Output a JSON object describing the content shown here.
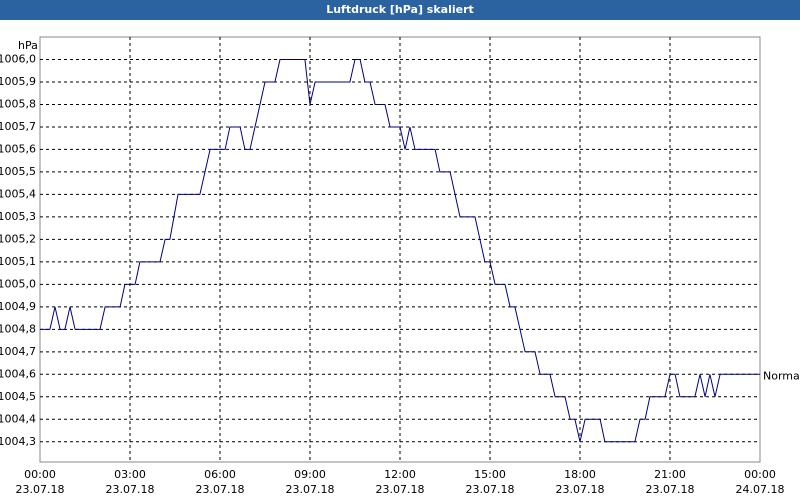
{
  "chart_data": {
    "type": "line",
    "title": "Luftdruck [hPa] skaliert",
    "y_label": "hPa",
    "x": [
      0,
      0.33,
      0.5,
      0.67,
      0.83,
      1,
      1.17,
      2,
      2.17,
      2.67,
      2.83,
      3.17,
      3.33,
      4,
      4.17,
      4.33,
      4.6,
      5.33,
      5.67,
      6.17,
      6.33,
      6.67,
      6.83,
      7,
      7.5,
      7.83,
      8,
      8.83,
      9,
      9.17,
      10.33,
      10.5,
      10.67,
      10.83,
      11,
      11.17,
      11.5,
      11.67,
      12,
      12.17,
      12.33,
      12.5,
      13.17,
      13.33,
      13.67,
      14,
      14.5,
      14.83,
      15,
      15.17,
      15.5,
      15.67,
      15.83,
      16.17,
      16.5,
      16.67,
      17,
      17.17,
      17.5,
      17.67,
      17.83,
      18,
      18.17,
      18.67,
      18.83,
      19.83,
      20,
      20.17,
      20.33,
      20.83,
      21,
      21.17,
      21.33,
      21.83,
      22,
      22.17,
      22.33,
      22.5,
      22.67,
      24
    ],
    "series": [
      {
        "name": "Normal",
        "color": "#000080",
        "values": [
          1004.8,
          1004.8,
          1004.9,
          1004.8,
          1004.8,
          1004.9,
          1004.8,
          1004.8,
          1004.9,
          1004.9,
          1005.0,
          1005.0,
          1005.1,
          1005.1,
          1005.2,
          1005.2,
          1005.4,
          1005.4,
          1005.6,
          1005.6,
          1005.7,
          1005.7,
          1005.6,
          1005.6,
          1005.9,
          1005.9,
          1006.0,
          1006.0,
          1005.8,
          1005.9,
          1005.9,
          1006.0,
          1006.0,
          1005.9,
          1005.9,
          1005.8,
          1005.8,
          1005.7,
          1005.7,
          1005.6,
          1005.7,
          1005.6,
          1005.6,
          1005.5,
          1005.5,
          1005.3,
          1005.3,
          1005.1,
          1005.1,
          1005.0,
          1005.0,
          1004.9,
          1004.9,
          1004.7,
          1004.7,
          1004.6,
          1004.6,
          1004.5,
          1004.5,
          1004.4,
          1004.4,
          1004.3,
          1004.4,
          1004.4,
          1004.3,
          1004.3,
          1004.4,
          1004.4,
          1004.5,
          1004.5,
          1004.6,
          1004.6,
          1004.5,
          1004.5,
          1004.6,
          1004.5,
          1004.6,
          1004.5,
          1004.6,
          1004.6
        ]
      }
    ],
    "xlim": [
      0,
      24
    ],
    "xticks": [
      {
        "value": 0,
        "label": "00:00",
        "date": "23.07.18"
      },
      {
        "value": 3,
        "label": "03:00",
        "date": "23.07.18"
      },
      {
        "value": 6,
        "label": "06:00",
        "date": "23.07.18"
      },
      {
        "value": 9,
        "label": "09:00",
        "date": "23.07.18"
      },
      {
        "value": 12,
        "label": "12:00",
        "date": "23.07.18"
      },
      {
        "value": 15,
        "label": "15:00",
        "date": "23.07.18"
      },
      {
        "value": 18,
        "label": "18:00",
        "date": "23.07.18"
      },
      {
        "value": 21,
        "label": "21:00",
        "date": "23.07.18"
      },
      {
        "value": 24,
        "label": "00:00",
        "date": "24.07.18"
      }
    ],
    "ylim": [
      1004.21,
      1006.1
    ],
    "yticks": [
      {
        "value": 1004.3,
        "label": "1004,3"
      },
      {
        "value": 1004.4,
        "label": "1004,4"
      },
      {
        "value": 1004.5,
        "label": "1004,5"
      },
      {
        "value": 1004.6,
        "label": "1004,6"
      },
      {
        "value": 1004.7,
        "label": "1004,7"
      },
      {
        "value": 1004.8,
        "label": "1004,8"
      },
      {
        "value": 1004.9,
        "label": "1004,9"
      },
      {
        "value": 1005.0,
        "label": "1005,0"
      },
      {
        "value": 1005.1,
        "label": "1005,1"
      },
      {
        "value": 1005.2,
        "label": "1005,2"
      },
      {
        "value": 1005.3,
        "label": "1005,3"
      },
      {
        "value": 1005.4,
        "label": "1005,4"
      },
      {
        "value": 1005.5,
        "label": "1005,5"
      },
      {
        "value": 1005.6,
        "label": "1005,6"
      },
      {
        "value": 1005.7,
        "label": "1005,7"
      },
      {
        "value": 1005.8,
        "label": "1005,8"
      },
      {
        "value": 1005.9,
        "label": "1005,9"
      },
      {
        "value": 1006.0,
        "label": "1006,0"
      }
    ],
    "grid": true
  }
}
